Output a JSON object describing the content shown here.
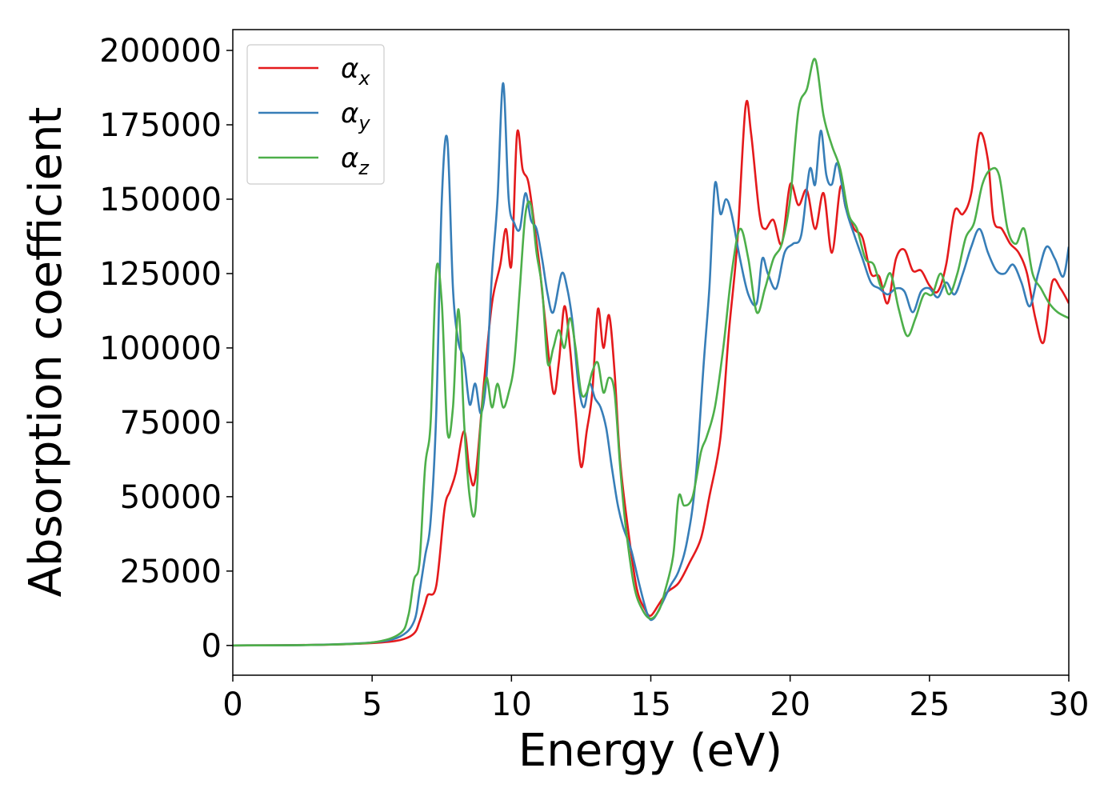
{
  "chart_data": {
    "type": "line",
    "xlabel": "Energy (eV)",
    "ylabel": "Absorption coefficient",
    "xlim": [
      0,
      30
    ],
    "ylim": [
      -10000,
      207000
    ],
    "xticks": [
      0,
      5,
      10,
      15,
      20,
      25,
      30
    ],
    "yticks": [
      0,
      25000,
      50000,
      75000,
      100000,
      125000,
      150000,
      175000,
      200000
    ],
    "grid": false,
    "legend_position": "top-left",
    "series": [
      {
        "name": "αx",
        "legend_base": "α",
        "legend_sub": "x",
        "color": "#e41a1c",
        "x": [
          0,
          3,
          5,
          6,
          6.5,
          6.7,
          6.9,
          7.0,
          7.3,
          7.6,
          7.8,
          8.0,
          8.3,
          8.5,
          8.7,
          9.0,
          9.3,
          9.6,
          9.8,
          10.0,
          10.2,
          10.4,
          10.6,
          10.8,
          11.0,
          11.2,
          11.5,
          11.7,
          11.9,
          12.1,
          12.3,
          12.5,
          12.7,
          12.9,
          13.1,
          13.3,
          13.5,
          13.7,
          13.9,
          14.2,
          14.5,
          14.8,
          15.0,
          15.3,
          15.6,
          16.0,
          16.4,
          16.8,
          17.1,
          17.5,
          17.8,
          18.1,
          18.4,
          18.6,
          18.9,
          19.1,
          19.4,
          19.7,
          20.0,
          20.3,
          20.6,
          20.9,
          21.2,
          21.5,
          21.8,
          22.0,
          22.3,
          22.6,
          22.9,
          23.2,
          23.5,
          23.8,
          24.1,
          24.4,
          24.7,
          25.0,
          25.3,
          25.6,
          25.9,
          26.2,
          26.5,
          26.8,
          27.1,
          27.3,
          27.6,
          27.9,
          28.2,
          28.5,
          28.8,
          29.1,
          29.4,
          29.7,
          30.0
        ],
        "values": [
          0,
          200,
          800,
          1800,
          4000,
          8000,
          14000,
          17000,
          20000,
          46000,
          52000,
          58000,
          72000,
          58000,
          56000,
          87000,
          115000,
          128000,
          140000,
          128000,
          172000,
          160000,
          156000,
          143000,
          128000,
          110000,
          85000,
          95000,
          114000,
          100000,
          78000,
          60000,
          72000,
          85000,
          113000,
          100000,
          111000,
          92000,
          62000,
          38000,
          19000,
          12000,
          10000,
          14000,
          18000,
          21000,
          28000,
          36000,
          50000,
          70000,
          105000,
          135000,
          181000,
          172000,
          145000,
          140000,
          143000,
          135000,
          155000,
          148000,
          153000,
          140000,
          152000,
          132000,
          154000,
          147000,
          140000,
          137000,
          125000,
          124000,
          115000,
          130000,
          133000,
          126000,
          126000,
          121000,
          119000,
          128000,
          146000,
          145000,
          152000,
          172000,
          163000,
          143000,
          140000,
          135000,
          132000,
          125000,
          110000,
          102000,
          122000,
          120000,
          115000
        ]
      },
      {
        "name": "αy",
        "legend_base": "α",
        "legend_sub": "y",
        "color": "#377eb8",
        "x": [
          0,
          3,
          5,
          6,
          6.5,
          6.7,
          6.9,
          7.1,
          7.3,
          7.5,
          7.7,
          7.9,
          8.1,
          8.3,
          8.5,
          8.7,
          8.9,
          9.1,
          9.3,
          9.5,
          9.7,
          9.9,
          10.1,
          10.3,
          10.5,
          10.7,
          10.9,
          11.1,
          11.3,
          11.5,
          11.8,
          12.0,
          12.2,
          12.4,
          12.6,
          12.8,
          13.0,
          13.2,
          13.4,
          13.6,
          13.8,
          14.0,
          14.3,
          14.6,
          14.9,
          15.1,
          15.4,
          15.7,
          16.0,
          16.3,
          16.6,
          16.9,
          17.1,
          17.3,
          17.5,
          17.7,
          17.9,
          18.2,
          18.5,
          18.8,
          19.0,
          19.2,
          19.5,
          19.8,
          20.1,
          20.4,
          20.7,
          20.9,
          21.1,
          21.3,
          21.5,
          21.7,
          22.0,
          22.3,
          22.6,
          22.9,
          23.2,
          23.5,
          23.8,
          24.1,
          24.4,
          24.7,
          25.0,
          25.3,
          25.6,
          25.9,
          26.2,
          26.5,
          26.8,
          27.1,
          27.4,
          27.7,
          28.0,
          28.3,
          28.6,
          28.9,
          29.2,
          29.5,
          29.8,
          30.0
        ],
        "values": [
          0,
          200,
          1000,
          3000,
          8000,
          18000,
          30000,
          42000,
          78000,
          150000,
          170000,
          120000,
          102000,
          96000,
          81000,
          88000,
          78000,
          90000,
          125000,
          150000,
          189000,
          150000,
          142000,
          140000,
          152000,
          143000,
          140000,
          130000,
          118000,
          112000,
          125000,
          120000,
          108000,
          88000,
          80000,
          88000,
          83000,
          80000,
          73000,
          60000,
          48000,
          40000,
          32000,
          20000,
          10000,
          9000,
          14000,
          20000,
          25000,
          35000,
          55000,
          95000,
          120000,
          155000,
          145000,
          150000,
          145000,
          130000,
          118000,
          115000,
          130000,
          125000,
          120000,
          132000,
          135000,
          138000,
          160000,
          155000,
          173000,
          158000,
          155000,
          162000,
          147000,
          138000,
          130000,
          122000,
          120000,
          118000,
          120000,
          119000,
          112000,
          119000,
          120000,
          117000,
          122000,
          118000,
          125000,
          134000,
          140000,
          132000,
          126000,
          125000,
          128000,
          122000,
          114000,
          125000,
          134000,
          130000,
          124000,
          134000
        ]
      },
      {
        "name": "αz",
        "legend_base": "α",
        "legend_sub": "z",
        "color": "#4daf4a",
        "x": [
          0,
          3,
          5,
          6,
          6.3,
          6.5,
          6.7,
          6.9,
          7.1,
          7.3,
          7.5,
          7.7,
          7.9,
          8.1,
          8.3,
          8.5,
          8.7,
          8.9,
          9.1,
          9.3,
          9.5,
          9.7,
          9.9,
          10.1,
          10.3,
          10.5,
          10.7,
          10.9,
          11.1,
          11.3,
          11.5,
          11.7,
          11.9,
          12.1,
          12.3,
          12.5,
          12.7,
          12.9,
          13.1,
          13.3,
          13.5,
          13.7,
          13.9,
          14.1,
          14.4,
          14.7,
          15.0,
          15.3,
          15.5,
          15.8,
          16.0,
          16.2,
          16.5,
          16.8,
          17.0,
          17.3,
          17.6,
          17.9,
          18.2,
          18.5,
          18.8,
          19.1,
          19.4,
          19.7,
          20.0,
          20.3,
          20.6,
          20.9,
          21.2,
          21.5,
          21.8,
          22.1,
          22.4,
          22.7,
          23.0,
          23.3,
          23.6,
          23.9,
          24.2,
          24.5,
          24.8,
          25.1,
          25.4,
          25.7,
          26.0,
          26.3,
          26.6,
          26.9,
          27.2,
          27.5,
          27.8,
          28.1,
          28.4,
          28.7,
          29.0,
          29.3,
          29.6,
          30.0
        ],
        "values": [
          0,
          200,
          1000,
          4000,
          10000,
          22000,
          28000,
          60000,
          75000,
          126000,
          115000,
          72000,
          80000,
          113000,
          75000,
          50000,
          45000,
          75000,
          90000,
          80000,
          88000,
          80000,
          85000,
          95000,
          120000,
          145000,
          148000,
          132000,
          120000,
          95000,
          100000,
          106000,
          100000,
          110000,
          100000,
          85000,
          85000,
          92000,
          95000,
          85000,
          90000,
          85000,
          60000,
          40000,
          20000,
          12000,
          9000,
          12000,
          18000,
          30000,
          50000,
          47000,
          50000,
          65000,
          70000,
          80000,
          100000,
          125000,
          140000,
          130000,
          112000,
          120000,
          130000,
          135000,
          150000,
          180000,
          187000,
          197000,
          178000,
          168000,
          160000,
          145000,
          140000,
          130000,
          128000,
          120000,
          125000,
          113000,
          104000,
          110000,
          118000,
          118000,
          125000,
          118000,
          125000,
          137000,
          142000,
          155000,
          160000,
          158000,
          140000,
          135000,
          140000,
          125000,
          120000,
          115000,
          112000,
          110000
        ]
      }
    ]
  }
}
